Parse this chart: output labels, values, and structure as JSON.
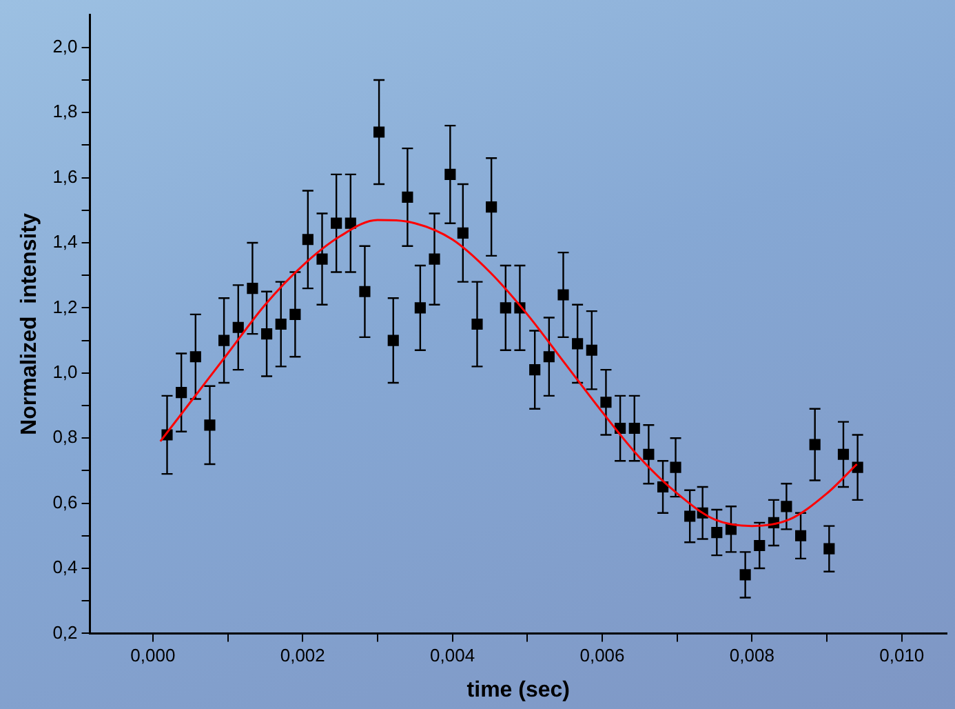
{
  "chart_data": {
    "type": "scatter",
    "xlabel": "time (sec)",
    "ylabel": "Normalized  intensity",
    "marker": "square",
    "grid": false,
    "legend": false,
    "xlim": [
      -0.00084,
      0.0106
    ],
    "ylim": [
      0.2,
      2.1
    ],
    "xticks": [
      {
        "value": 0,
        "label": "0,000"
      },
      {
        "value": 0.001,
        "label": null
      },
      {
        "value": 0.002,
        "label": "0,002"
      },
      {
        "value": 0.003,
        "label": null
      },
      {
        "value": 0.004,
        "label": "0,004"
      },
      {
        "value": 0.005,
        "label": null
      },
      {
        "value": 0.006,
        "label": "0,006"
      },
      {
        "value": 0.007,
        "label": null
      },
      {
        "value": 0.008,
        "label": "0,008"
      },
      {
        "value": 0.009,
        "label": null
      },
      {
        "value": 0.01,
        "label": "0,010"
      }
    ],
    "yticks": [
      {
        "value": 0.2,
        "label": "0,2"
      },
      {
        "value": 0.3,
        "label": null
      },
      {
        "value": 0.4,
        "label": "0,4"
      },
      {
        "value": 0.5,
        "label": null
      },
      {
        "value": 0.6,
        "label": "0,6"
      },
      {
        "value": 0.7,
        "label": null
      },
      {
        "value": 0.8,
        "label": "0,8"
      },
      {
        "value": 0.9,
        "label": null
      },
      {
        "value": 1.0,
        "label": "1,0"
      },
      {
        "value": 1.1,
        "label": null
      },
      {
        "value": 1.2,
        "label": "1,2"
      },
      {
        "value": 1.3,
        "label": null
      },
      {
        "value": 1.4,
        "label": "1,4"
      },
      {
        "value": 1.5,
        "label": null
      },
      {
        "value": 1.6,
        "label": "1,6"
      },
      {
        "value": 1.7,
        "label": null
      },
      {
        "value": 1.8,
        "label": "1,8"
      },
      {
        "value": 1.9,
        "label": null
      },
      {
        "value": 2.0,
        "label": "2,0"
      }
    ],
    "series": [
      {
        "color": "#000000",
        "x": [
          0.00019,
          0.00038,
          0.00057,
          0.00076,
          0.00095,
          0.00114,
          0.00133,
          0.00152,
          0.00171,
          0.0019,
          0.00207,
          0.00226,
          0.00245,
          0.00264,
          0.00283,
          0.00302,
          0.00321,
          0.0034,
          0.00357,
          0.00376,
          0.00397,
          0.00414,
          0.00433,
          0.00452,
          0.00471,
          0.0049,
          0.0051,
          0.00529,
          0.00548,
          0.00567,
          0.00586,
          0.00605,
          0.00624,
          0.00643,
          0.00662,
          0.00681,
          0.00698,
          0.00717,
          0.00734,
          0.00753,
          0.00772,
          0.00791,
          0.0081,
          0.00829,
          0.00846,
          0.00865,
          0.00884,
          0.00903,
          0.00922,
          0.00941
        ],
        "values": [
          0.81,
          0.94,
          1.05,
          0.84,
          1.1,
          1.14,
          1.26,
          1.12,
          1.15,
          1.18,
          1.41,
          1.35,
          1.46,
          1.46,
          1.25,
          1.74,
          1.1,
          1.54,
          1.2,
          1.35,
          1.61,
          1.43,
          1.15,
          1.51,
          1.2,
          1.2,
          1.01,
          1.05,
          1.24,
          1.09,
          1.07,
          0.91,
          0.83,
          0.83,
          0.75,
          0.65,
          0.71,
          0.56,
          0.57,
          0.51,
          0.52,
          0.38,
          0.47,
          0.54,
          0.59,
          0.5,
          0.78,
          0.46,
          0.75,
          0.71
        ],
        "errors": [
          0.12,
          0.12,
          0.13,
          0.12,
          0.13,
          0.13,
          0.14,
          0.13,
          0.13,
          0.13,
          0.15,
          0.14,
          0.15,
          0.15,
          0.14,
          0.16,
          0.13,
          0.15,
          0.13,
          0.14,
          0.15,
          0.15,
          0.13,
          0.15,
          0.13,
          0.13,
          0.12,
          0.12,
          0.13,
          0.12,
          0.12,
          0.1,
          0.1,
          0.1,
          0.09,
          0.08,
          0.09,
          0.08,
          0.08,
          0.07,
          0.07,
          0.07,
          0.07,
          0.07,
          0.07,
          0.07,
          0.11,
          0.07,
          0.1,
          0.1
        ]
      },
      {
        "type": "line",
        "color": "#ff0000",
        "marker": "none",
        "x": [
          0.0001,
          0.0005,
          0.001,
          0.0015,
          0.002,
          0.0025,
          0.003,
          0.0035,
          0.004,
          0.0045,
          0.005,
          0.0055,
          0.006,
          0.0065,
          0.007,
          0.0075,
          0.008,
          0.0085,
          0.009,
          0.0094
        ],
        "values": [
          0.79,
          0.91,
          1.06,
          1.21,
          1.33,
          1.42,
          1.47,
          1.46,
          1.41,
          1.31,
          1.18,
          1.03,
          0.88,
          0.74,
          0.63,
          0.55,
          0.53,
          0.55,
          0.63,
          0.72
        ]
      }
    ]
  }
}
